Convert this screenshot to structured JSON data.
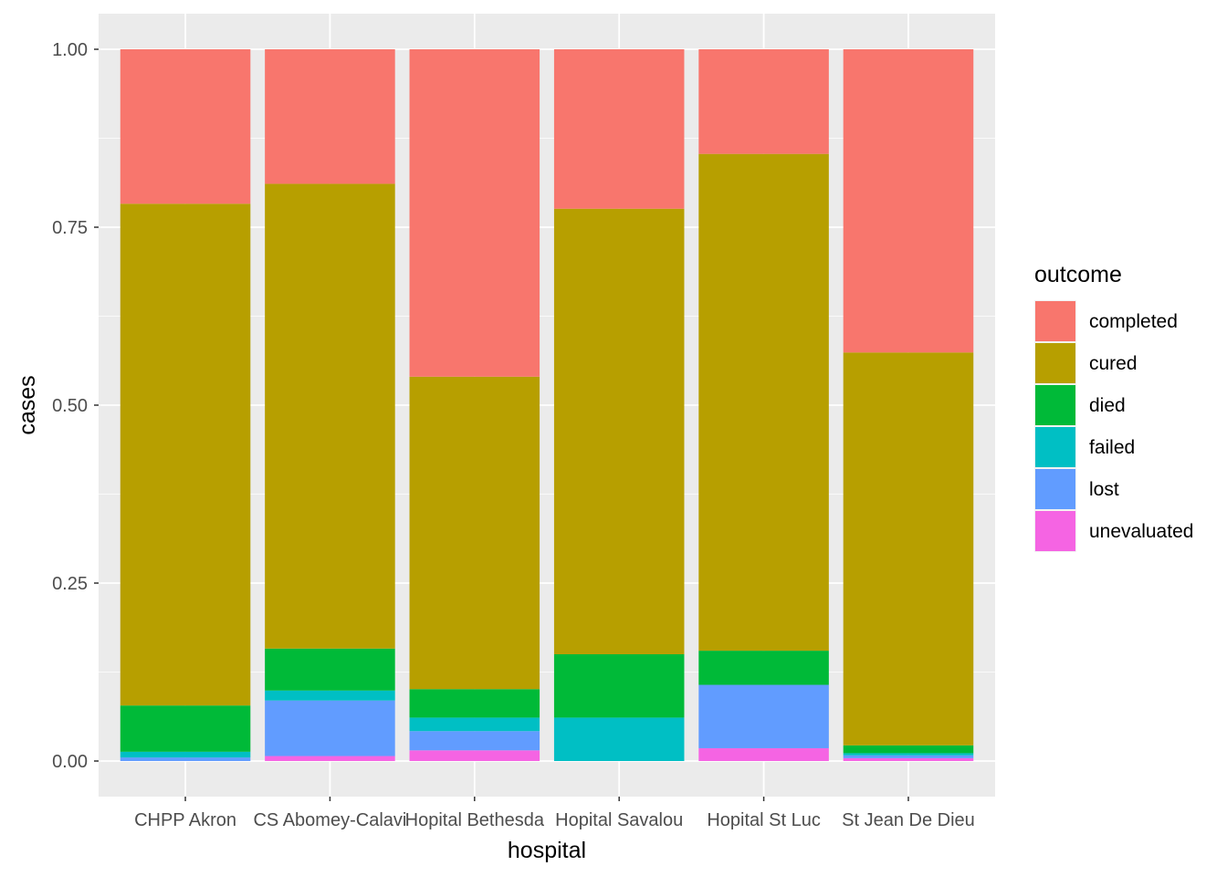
{
  "chart_data": {
    "type": "bar",
    "stacked": true,
    "position": "fill",
    "xlabel": "hospital",
    "ylabel": "cases",
    "ylim": [
      0,
      1
    ],
    "yticks": [
      "0.00",
      "0.25",
      "0.50",
      "0.75",
      "1.00"
    ],
    "ytick_values": [
      0,
      0.25,
      0.5,
      0.75,
      1.0
    ],
    "categories": [
      "CHPP Akron",
      "CS Abomey-Calavi",
      "Hopital Bethesda",
      "Hopital Savalou",
      "Hopital St Luc",
      "St Jean De Dieu"
    ],
    "legend": {
      "title": "outcome",
      "placement": "right"
    },
    "grid": true,
    "background": "#EBEBEB",
    "series": [
      {
        "name": "unevaluated",
        "color": "#F564E3",
        "values": [
          0.0,
          0.007,
          0.015,
          0.0,
          0.018,
          0.004
        ]
      },
      {
        "name": "lost",
        "color": "#619CFF",
        "values": [
          0.005,
          0.078,
          0.027,
          0.0,
          0.089,
          0.004
        ]
      },
      {
        "name": "failed",
        "color": "#00BFC4",
        "values": [
          0.008,
          0.014,
          0.019,
          0.061,
          0.0,
          0.003
        ]
      },
      {
        "name": "died",
        "color": "#00BA38",
        "values": [
          0.065,
          0.059,
          0.04,
          0.089,
          0.048,
          0.011
        ]
      },
      {
        "name": "cured",
        "color": "#B79F00",
        "values": [
          0.705,
          0.653,
          0.439,
          0.626,
          0.698,
          0.552
        ]
      },
      {
        "name": "completed",
        "color": "#F8766D",
        "values": [
          0.217,
          0.189,
          0.46,
          0.224,
          0.147,
          0.426
        ]
      }
    ],
    "legend_order": [
      "completed",
      "cured",
      "died",
      "failed",
      "lost",
      "unevaluated"
    ]
  }
}
